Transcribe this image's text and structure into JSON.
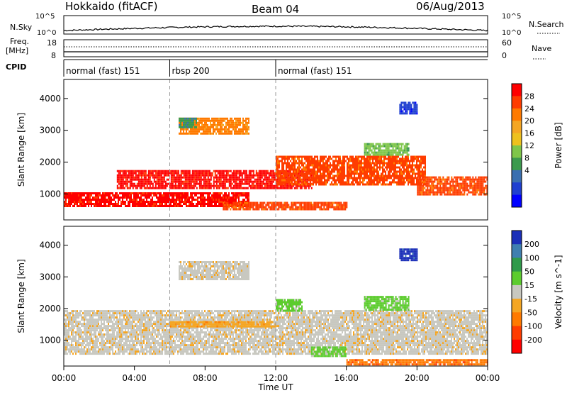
{
  "header": {
    "station": "Hokkaido (fitACF)",
    "beam": "Beam 04",
    "date": "06/Aug/2013"
  },
  "top_panels": {
    "nsky_label": "N.Sky",
    "nsky_ticks": [
      "10^5",
      "10^0"
    ],
    "nsearch_label": "N.Search",
    "nsearch_ticks": [
      "10^5",
      "10^0"
    ],
    "freq_label": [
      "Freq.",
      "[MHz]"
    ],
    "freq_ticks": [
      "18",
      "8"
    ],
    "nave_label": "Nave",
    "nave_ticks": [
      "60",
      "0"
    ],
    "cpid_label": "CPID",
    "modes": [
      "normal (fast) 151",
      "rbsp 200",
      "normal (fast) 151"
    ],
    "mode_starts_hours": [
      0,
      6,
      12
    ]
  },
  "chart_data": {
    "type": "heatmap",
    "xlabel": "Time UT",
    "x_ticks": [
      "00:00",
      "04:00",
      "08:00",
      "12:00",
      "16:00",
      "20:00",
      "00:00"
    ],
    "xlim_hours": [
      0,
      24
    ],
    "panels": [
      {
        "ylabel": "Slant Range [km]",
        "ylim": [
          180,
          4600
        ],
        "y_ticks": [
          1000,
          2000,
          3000,
          4000
        ],
        "colorbar_label": "Power [dB]",
        "colorbar_ticks": [
          "28",
          "24",
          "20",
          "16",
          "12",
          "8",
          "4"
        ],
        "colors": [
          "#ff0000",
          "#ff3c00",
          "#ff7a00",
          "#f5a623",
          "#eec11e",
          "#7fc64a",
          "#3c9a4e",
          "#3a6fb0",
          "#1f3fd0",
          "#0000ff"
        ],
        "regions": [
          {
            "t": [
              0,
              10.5
            ],
            "r": [
              600,
              1050
            ],
            "level": 0
          },
          {
            "t": [
              3,
              14
            ],
            "r": [
              1150,
              1750
            ],
            "level": 0
          },
          {
            "t": [
              12,
              20.5
            ],
            "r": [
              1300,
              2200
            ],
            "level": 1
          },
          {
            "t": [
              20,
              24
            ],
            "r": [
              950,
              1550
            ],
            "level": 1
          },
          {
            "t": [
              6.5,
              10.5
            ],
            "r": [
              2900,
              3400
            ],
            "level": 2
          },
          {
            "t": [
              9,
              16
            ],
            "r": [
              500,
              750
            ],
            "level": 1
          },
          {
            "t": [
              17,
              19.5
            ],
            "r": [
              2200,
              2600
            ],
            "level": 5
          },
          {
            "t": [
              6.5,
              7.5
            ],
            "r": [
              3100,
              3400
            ],
            "level": 6
          },
          {
            "t": [
              19,
              20
            ],
            "r": [
              3500,
              3900
            ],
            "level": 8
          }
        ]
      },
      {
        "ylabel": "Slant Range [km]",
        "ylim": [
          180,
          4600
        ],
        "y_ticks": [
          1000,
          2000,
          3000,
          4000
        ],
        "colorbar_label": "Velocity [m s^-1]",
        "colorbar_ticks": [
          "200",
          "100",
          "50",
          "15",
          "-15",
          "-50",
          "-100",
          "-200"
        ],
        "colors": [
          "#1b2fb8",
          "#3f7fb0",
          "#2f9a4a",
          "#5ccc2e",
          "#c8c8c0",
          "#f5a623",
          "#ff7a00",
          "#ff3c00",
          "#ff0000"
        ],
        "regions": [
          {
            "t": [
              0,
              24
            ],
            "r": [
              550,
              1950
            ],
            "level": 4
          },
          {
            "t": [
              6.5,
              10.5
            ],
            "r": [
              2900,
              3500
            ],
            "level": 4
          },
          {
            "t": [
              12,
              13.5
            ],
            "r": [
              1950,
              2300
            ],
            "level": 3
          },
          {
            "t": [
              17,
              19.5
            ],
            "r": [
              1950,
              2400
            ],
            "level": 3
          },
          {
            "t": [
              14,
              16
            ],
            "r": [
              500,
              800
            ],
            "level": 3
          },
          {
            "t": [
              16,
              24
            ],
            "r": [
              200,
              400
            ],
            "level": 6
          },
          {
            "t": [
              6,
              12
            ],
            "r": [
              1400,
              1600
            ],
            "level": 5
          },
          {
            "t": [
              19,
              20
            ],
            "r": [
              3500,
              3900
            ],
            "level": 0
          }
        ]
      }
    ]
  }
}
